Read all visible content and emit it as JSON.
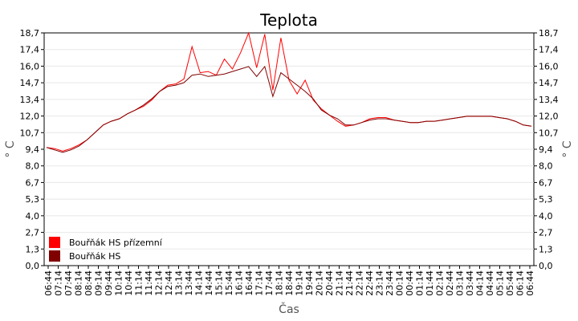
{
  "chart_data": {
    "type": "line",
    "title": "Teplota",
    "xlabel": "Čas",
    "ylabel": "° C",
    "ylim": [
      0,
      18.7
    ],
    "yticks": [
      "0,0",
      "1,3",
      "2,7",
      "4,0",
      "5,3",
      "6,7",
      "8,0",
      "9,4",
      "10,7",
      "12,0",
      "13,4",
      "14,7",
      "16,0",
      "17,4",
      "18,7"
    ],
    "xticks": [
      "06:44",
      "07:14",
      "07:44",
      "08:14",
      "08:44",
      "09:14",
      "09:44",
      "10:14",
      "10:44",
      "11:14",
      "11:44",
      "12:14",
      "12:44",
      "13:14",
      "13:44",
      "14:14",
      "14:44",
      "15:14",
      "15:44",
      "16:14",
      "16:44",
      "17:14",
      "17:44",
      "18:14",
      "18:44",
      "19:14",
      "19:44",
      "20:14",
      "20:44",
      "21:14",
      "21:44",
      "22:14",
      "22:44",
      "23:14",
      "23:44",
      "00:14",
      "00:44",
      "01:14",
      "01:44",
      "02:14",
      "02:44",
      "03:14",
      "03:44",
      "04:14",
      "04:44",
      "05:14",
      "05:44",
      "06:14",
      "06:44"
    ],
    "grid": true,
    "legend_position": "bottom-left",
    "series": [
      {
        "name": "Bouřňák HS přízemní",
        "color": "#ff0000",
        "values": [
          9.5,
          9.4,
          9.2,
          9.4,
          9.7,
          10.1,
          10.7,
          11.3,
          11.6,
          11.8,
          12.2,
          12.5,
          12.8,
          13.3,
          14.0,
          14.5,
          14.6,
          15.0,
          17.6,
          15.5,
          15.6,
          15.3,
          16.6,
          15.8,
          17.1,
          18.7,
          15.9,
          18.6,
          14.1,
          18.3,
          14.9,
          13.8,
          14.9,
          13.3,
          12.6,
          12.1,
          11.6,
          11.2,
          11.3,
          11.5,
          11.8,
          11.9,
          11.9,
          11.7,
          11.6,
          11.5,
          11.5,
          11.6,
          11.6,
          11.7,
          11.8,
          11.9,
          12.0,
          12.0,
          12.0,
          12.0,
          11.9,
          11.8,
          11.6,
          11.3,
          11.2
        ]
      },
      {
        "name": "Bouřňák HS",
        "color": "#800000",
        "values": [
          9.5,
          9.3,
          9.1,
          9.3,
          9.6,
          10.1,
          10.7,
          11.3,
          11.6,
          11.8,
          12.2,
          12.5,
          12.9,
          13.4,
          14.0,
          14.4,
          14.5,
          14.7,
          15.3,
          15.4,
          15.2,
          15.3,
          15.4,
          15.6,
          15.8,
          16.0,
          15.2,
          16.0,
          13.6,
          15.5,
          15.0,
          14.5,
          14.0,
          13.4,
          12.5,
          12.1,
          11.8,
          11.3,
          11.3,
          11.5,
          11.7,
          11.8,
          11.8,
          11.7,
          11.6,
          11.5,
          11.5,
          11.6,
          11.6,
          11.7,
          11.8,
          11.9,
          12.0,
          12.0,
          12.0,
          12.0,
          11.9,
          11.8,
          11.6,
          11.3,
          11.2
        ]
      }
    ]
  }
}
